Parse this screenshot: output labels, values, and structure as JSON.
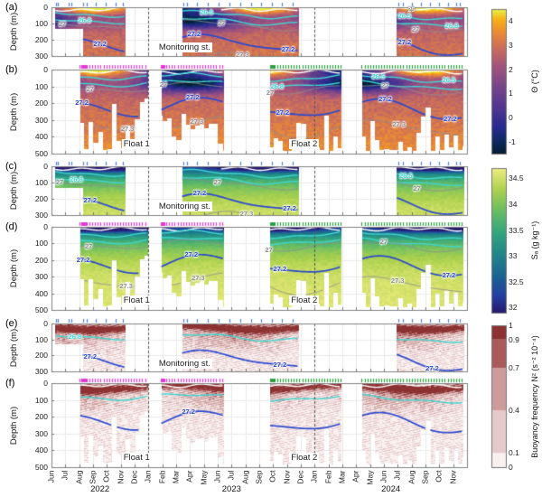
{
  "chart_data": {
    "type": "heatmap",
    "x_axis": {
      "months": [
        "Jun",
        "Jul",
        "Aug",
        "Sep",
        "Oct",
        "Nov",
        "Dec",
        "Jan",
        "Feb",
        "Mar",
        "Apr",
        "May",
        "Jun",
        "Jul",
        "Aug",
        "Sep",
        "Oct",
        "Nov",
        "Dec",
        "Jan",
        "Feb",
        "Mar",
        "Apr",
        "May",
        "Jun",
        "Jul",
        "Aug",
        "Sep",
        "Oct",
        "Nov"
      ],
      "years": [
        {
          "label": "2022",
          "center_month": 3.5
        },
        {
          "label": "2023",
          "center_month": 13
        },
        {
          "label": "2024",
          "center_month": 24.5
        }
      ],
      "year_boundaries_months": [
        7,
        19
      ]
    },
    "isopycnal_colors": {
      "25": "#ffffff",
      "26.5": "#3fd6d2",
      "26.8": "#3fd6d2",
      "27": "#8f8f8f",
      "27.2": "#2b48cf",
      "27.3": "#8f8f8f"
    },
    "colorbars": [
      {
        "id": "theta",
        "title": "Θ (°C)",
        "type": "gradient",
        "colormap": "thermal",
        "min": -1.5,
        "max": 4.5,
        "ticks": [
          -1,
          0,
          1,
          2,
          3,
          4
        ]
      },
      {
        "id": "salinity",
        "title": "Sₐ (g kg⁻¹)",
        "type": "gradient",
        "colormap": "haline",
        "min": 31.9,
        "max": 34.7,
        "ticks": [
          32,
          32.5,
          33,
          33.5,
          34,
          34.5
        ]
      },
      {
        "id": "n2",
        "title": "Buoyancy frequency N² (s⁻² 10⁻⁴)",
        "type": "bands",
        "min": 0,
        "max": 1,
        "ticks": [
          0,
          0.1,
          0.4,
          0.7,
          0.9,
          1
        ],
        "bands": [
          {
            "from": 0,
            "to": 0.1,
            "color": "#f9f0f0"
          },
          {
            "from": 0.1,
            "to": 0.4,
            "color": "#e6caca"
          },
          {
            "from": 0.4,
            "to": 0.7,
            "color": "#cc9c9c"
          },
          {
            "from": 0.7,
            "to": 0.9,
            "color": "#aa5a5a"
          },
          {
            "from": 0.9,
            "to": 1,
            "color": "#8d3232"
          }
        ]
      }
    ],
    "panels": [
      {
        "id": "a",
        "label": "(a)",
        "ylabel": "Depth (m)",
        "variable": "temperature",
        "colormap": "thermal",
        "ylim": [
          0,
          300
        ],
        "yticks": [
          0,
          100,
          200,
          300
        ],
        "ragged_bottom": false,
        "segments": [
          {
            "from": 0.25,
            "to": 5.3,
            "shallow_until": 2.25,
            "shallow_depth": 130
          },
          {
            "from": 9.4,
            "to": 17.85
          },
          {
            "from": 24.9,
            "to": 29.75
          }
        ],
        "obs_ticks": [
          {
            "color": "#4f7fd9",
            "months": [
              0.3,
              0.45,
              1.25,
              1.45,
              2.3,
              2.55,
              3.2,
              3.9,
              4.6,
              5.15,
              9.5,
              9.75,
              10.5,
              11.3,
              12.05,
              12.85,
              13.6,
              14.4,
              15.15,
              15.9,
              16.65,
              17.4,
              25.05,
              25.35,
              26.0,
              26.65,
              27.3,
              27.95,
              28.6,
              29.2,
              29.5
            ]
          }
        ],
        "annotations": [
          {
            "text": "Monitoring st.",
            "month": 7.75,
            "depth": 258
          }
        ],
        "contours": [
          25,
          26.5,
          26.8,
          27,
          27.2,
          27.3
        ],
        "contour_labels": [
          {
            "value": 26.8,
            "month": 2.5,
            "depth": 83
          },
          {
            "value": 27,
            "month": 1.1,
            "depth": 106
          },
          {
            "value": 27.2,
            "month": 3.6,
            "depth": 228
          },
          {
            "value": 26.5,
            "month": 11.3,
            "depth": 33
          },
          {
            "value": 27,
            "month": 12.6,
            "depth": 103
          },
          {
            "value": 27.2,
            "month": 10.4,
            "depth": 169
          },
          {
            "value": 27.3,
            "month": 13.9,
            "depth": 292
          },
          {
            "value": 27.2,
            "month": 17.2,
            "depth": 263
          },
          {
            "value": 25,
            "month": 26.3,
            "depth": 18
          },
          {
            "value": 26.5,
            "month": 25.6,
            "depth": 55
          },
          {
            "value": 26.8,
            "month": 29.0,
            "depth": 118
          },
          {
            "value": 27,
            "month": 26.6,
            "depth": 136
          },
          {
            "value": 27.2,
            "month": 25.6,
            "depth": 218
          }
        ]
      },
      {
        "id": "b",
        "label": "(b)",
        "ylabel": "Depth (m)",
        "variable": "temperature",
        "colormap": "thermal",
        "ylim": [
          0,
          500
        ],
        "yticks": [
          0,
          100,
          200,
          300,
          400,
          500
        ],
        "ragged_bottom": true,
        "segments": [
          {
            "from": 2.05,
            "to": 6.95
          },
          {
            "from": 7.9,
            "to": 12.45
          },
          {
            "from": 15.75,
            "to": 20.9
          },
          {
            "from": 22.4,
            "to": 29.7
          }
        ],
        "obs_ticks": [
          {
            "color": "#e23bd4",
            "ranges": [
              [
                2.05,
                2.5,
                0.07
              ],
              [
                2.55,
                6.95,
                0.2
              ],
              [
                7.9,
                8.25,
                0.07
              ],
              [
                8.3,
                12.45,
                0.2
              ]
            ]
          },
          {
            "color": "#2f9e44",
            "ranges": [
              [
                15.75,
                16.05,
                0.07
              ],
              [
                16.1,
                20.9,
                0.2
              ],
              [
                22.4,
                29.7,
                0.2
              ]
            ]
          }
        ],
        "annotations": [
          {
            "text": "Float 1",
            "month": 5.2,
            "depth": 452
          },
          {
            "text": "Float 2",
            "month": 17.3,
            "depth": 452
          }
        ],
        "contours": [
          25,
          26.5,
          26.8,
          27,
          27.2,
          27.3
        ],
        "contour_labels": [
          {
            "value": 27,
            "month": 3.1,
            "depth": 122
          },
          {
            "value": 27.2,
            "month": 2.3,
            "depth": 197
          },
          {
            "value": 27.3,
            "month": 5.6,
            "depth": 357
          },
          {
            "value": 27,
            "month": 8.4,
            "depth": 90
          },
          {
            "value": 27.2,
            "month": 10.3,
            "depth": 170
          },
          {
            "value": 27.3,
            "month": 10.6,
            "depth": 310
          },
          {
            "value": 26.8,
            "month": 16.4,
            "depth": 103
          },
          {
            "value": 27,
            "month": 16.1,
            "depth": 141
          },
          {
            "value": 27.2,
            "month": 16.8,
            "depth": 259
          },
          {
            "value": 26.5,
            "month": 23.7,
            "depth": 44
          },
          {
            "value": 27,
            "month": 24.4,
            "depth": 96
          },
          {
            "value": 27.2,
            "month": 24.2,
            "depth": 179
          },
          {
            "value": 27.3,
            "month": 25.2,
            "depth": 329
          },
          {
            "value": 26.5,
            "month": 28.8,
            "depth": 67
          },
          {
            "value": 27.2,
            "month": 28.9,
            "depth": 291
          }
        ]
      },
      {
        "id": "c",
        "label": "(c)",
        "ylabel": "Depth (m)",
        "variable": "salinity",
        "colormap": "haline",
        "ylim": [
          0,
          300
        ],
        "yticks": [
          0,
          100,
          200,
          300
        ],
        "ragged_bottom": false,
        "segments": [
          {
            "from": 0.25,
            "to": 5.3,
            "shallow_until": 2.25,
            "shallow_depth": 130
          },
          {
            "from": 9.4,
            "to": 17.85
          },
          {
            "from": 24.9,
            "to": 29.75
          }
        ],
        "obs_ticks": [
          {
            "color": "#4f7fd9",
            "months": [
              0.3,
              0.45,
              1.25,
              1.45,
              2.3,
              2.55,
              3.2,
              3.9,
              4.6,
              5.15,
              9.5,
              9.75,
              10.5,
              11.3,
              12.05,
              12.85,
              13.6,
              14.4,
              15.15,
              15.9,
              16.65,
              17.4,
              25.05,
              25.35,
              26.0,
              26.65,
              27.3,
              27.95,
              28.6,
              29.2,
              29.5
            ]
          }
        ],
        "annotations": [
          {
            "text": "Monitoring st.",
            "month": 7.75,
            "depth": 258
          }
        ],
        "contours": [
          25,
          26.5,
          26.8,
          27,
          27.2,
          27.3
        ],
        "contour_labels": [
          {
            "value": 26.8,
            "month": 1.9,
            "depth": 80
          },
          {
            "value": 27,
            "month": 0.9,
            "depth": 104
          },
          {
            "value": 27.2,
            "month": 2.9,
            "depth": 215
          },
          {
            "value": 27,
            "month": 12.3,
            "depth": 100
          },
          {
            "value": 27.2,
            "month": 10.8,
            "depth": 168
          },
          {
            "value": 27.3,
            "month": 14.2,
            "depth": 295
          },
          {
            "value": 27.2,
            "month": 17.3,
            "depth": 264
          },
          {
            "value": 26.5,
            "month": 25.7,
            "depth": 55
          },
          {
            "value": 27,
            "month": 26.7,
            "depth": 136
          }
        ]
      },
      {
        "id": "d",
        "label": "(d)",
        "ylabel": "Depth (m)",
        "variable": "salinity",
        "colormap": "haline",
        "ylim": [
          0,
          500
        ],
        "yticks": [
          0,
          100,
          200,
          300,
          400,
          500
        ],
        "ragged_bottom": true,
        "segments": [
          {
            "from": 2.05,
            "to": 6.95
          },
          {
            "from": 7.9,
            "to": 12.45
          },
          {
            "from": 15.75,
            "to": 20.9
          },
          {
            "from": 22.4,
            "to": 29.7
          }
        ],
        "obs_ticks": [
          {
            "color": "#e23bd4",
            "ranges": [
              [
                2.05,
                2.5,
                0.07
              ],
              [
                2.55,
                6.95,
                0.2
              ],
              [
                7.9,
                8.25,
                0.07
              ],
              [
                8.3,
                12.45,
                0.2
              ]
            ]
          },
          {
            "color": "#2f9e44",
            "ranges": [
              [
                15.75,
                16.05,
                0.07
              ],
              [
                16.1,
                20.9,
                0.2
              ],
              [
                22.4,
                29.7,
                0.2
              ]
            ]
          }
        ],
        "annotations": [
          {
            "text": "Float 1",
            "month": 5.2,
            "depth": 452
          },
          {
            "text": "Float 2",
            "month": 17.3,
            "depth": 452
          }
        ],
        "contours": [
          25,
          26.5,
          26.8,
          27,
          27.2,
          27.3
        ],
        "contour_labels": [
          {
            "value": 27,
            "month": 3.0,
            "depth": 121
          },
          {
            "value": 27.2,
            "month": 2.4,
            "depth": 198
          },
          {
            "value": 27.3,
            "month": 5.5,
            "depth": 356
          },
          {
            "value": 27.2,
            "month": 10.2,
            "depth": 171
          },
          {
            "value": 27.3,
            "month": 10.7,
            "depth": 311
          },
          {
            "value": 27,
            "month": 16.0,
            "depth": 140
          },
          {
            "value": 27.2,
            "month": 16.6,
            "depth": 257
          },
          {
            "value": 27.3,
            "month": 25.1,
            "depth": 328
          },
          {
            "value": 27,
            "month": 24.3,
            "depth": 96
          },
          {
            "value": 27.2,
            "month": 28.8,
            "depth": 290
          }
        ]
      },
      {
        "id": "e",
        "label": "(e)",
        "ylabel": "Depth (m)",
        "variable": "n2",
        "colormap": "n2bands",
        "ylim": [
          0,
          300
        ],
        "yticks": [
          0,
          100,
          200,
          300
        ],
        "ragged_bottom": false,
        "segments": [
          {
            "from": 0.25,
            "to": 5.3,
            "shallow_until": 2.25,
            "shallow_depth": 130
          },
          {
            "from": 9.4,
            "to": 17.85
          },
          {
            "from": 24.9,
            "to": 29.75
          }
        ],
        "obs_ticks": [
          {
            "color": "#4f7fd9",
            "months": [
              0.3,
              0.45,
              1.25,
              1.45,
              2.3,
              2.55,
              3.2,
              3.9,
              4.6,
              5.15,
              9.5,
              9.75,
              10.5,
              11.3,
              12.05,
              12.85,
              13.6,
              14.4,
              15.15,
              15.9,
              16.65,
              17.4,
              25.05,
              25.35,
              26.0,
              26.65,
              27.3,
              27.95,
              28.6,
              29.2,
              29.5
            ]
          }
        ],
        "annotations": [
          {
            "text": "Monitoring st.",
            "month": 7.75,
            "depth": 258
          }
        ],
        "contours": [
          26.8,
          27.2
        ],
        "contour_labels": [
          {
            "value": 26.8,
            "month": 1.8,
            "depth": 82
          },
          {
            "value": 27.2,
            "month": 2.9,
            "depth": 215
          },
          {
            "value": 27.2,
            "month": 16.6,
            "depth": 258
          },
          {
            "value": 27.2,
            "month": 27.6,
            "depth": 284
          }
        ]
      },
      {
        "id": "f",
        "label": "(f)",
        "ylabel": "Depth (m)",
        "variable": "n2",
        "colormap": "n2bands",
        "ylim": [
          0,
          500
        ],
        "yticks": [
          0,
          100,
          200,
          300,
          400,
          500
        ],
        "ragged_bottom": true,
        "segments": [
          {
            "from": 2.05,
            "to": 6.95
          },
          {
            "from": 7.9,
            "to": 12.45
          },
          {
            "from": 15.75,
            "to": 20.9
          },
          {
            "from": 22.4,
            "to": 29.7
          }
        ],
        "obs_ticks": [
          {
            "color": "#e23bd4",
            "ranges": [
              [
                2.05,
                2.5,
                0.07
              ],
              [
                2.55,
                6.95,
                0.2
              ],
              [
                7.9,
                8.25,
                0.07
              ],
              [
                8.3,
                12.45,
                0.2
              ]
            ]
          },
          {
            "color": "#2f9e44",
            "ranges": [
              [
                15.75,
                16.05,
                0.07
              ],
              [
                16.1,
                20.9,
                0.2
              ],
              [
                22.4,
                29.7,
                0.2
              ]
            ]
          }
        ],
        "annotations": [
          {
            "text": "Float 1",
            "month": 5.2,
            "depth": 452
          },
          {
            "text": "Float 2",
            "month": 17.3,
            "depth": 452
          }
        ],
        "contours": [
          25,
          26.8,
          27.2
        ],
        "contour_labels": [
          {
            "value": 27.2,
            "month": 10.0,
            "depth": 168
          }
        ]
      }
    ]
  }
}
